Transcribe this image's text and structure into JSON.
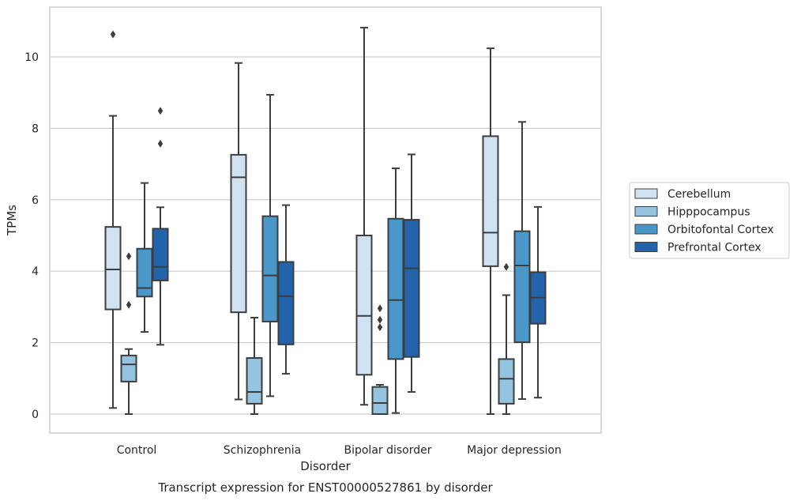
{
  "chart_data": {
    "type": "boxplot",
    "caption": "Transcript expression for ENST00000527861 by disorder",
    "xlabel": "Disorder",
    "ylabel": "TPMs",
    "ylim": [
      -0.5,
      11.4
    ],
    "yticks": [
      "0",
      "2",
      "4",
      "6",
      "8",
      "10"
    ],
    "ytick_values": [
      0,
      2,
      4,
      6,
      8,
      10
    ],
    "grid": "horizontal",
    "legend_position": "right",
    "categories": [
      "Control",
      "Schizophrenia",
      "Bipolar disorder",
      "Major depression"
    ],
    "series": [
      {
        "name": "Cerebellum",
        "color": "#d0e1f2",
        "boxes": [
          {
            "whislo": 0.17,
            "q1": 2.93,
            "med": 4.05,
            "q3": 5.24,
            "whishi": 8.35,
            "fliers": [
              10.63
            ]
          },
          {
            "whislo": 0.41,
            "q1": 2.85,
            "med": 6.63,
            "q3": 7.26,
            "whishi": 9.83,
            "fliers": []
          },
          {
            "whislo": 0.26,
            "q1": 1.1,
            "med": 2.75,
            "q3": 5.0,
            "whishi": 10.82,
            "fliers": []
          },
          {
            "whislo": 0.0,
            "q1": 4.14,
            "med": 5.08,
            "q3": 7.78,
            "whishi": 10.24,
            "fliers": []
          }
        ]
      },
      {
        "name": "Hipppocampus",
        "color": "#94c4df",
        "boxes": [
          {
            "whislo": 0.0,
            "q1": 0.91,
            "med": 1.39,
            "q3": 1.64,
            "whishi": 1.82,
            "fliers": [
              4.42,
              3.06
            ]
          },
          {
            "whislo": 0.0,
            "q1": 0.29,
            "med": 0.62,
            "q3": 1.57,
            "whishi": 2.7,
            "fliers": []
          },
          {
            "whislo": 0.0,
            "q1": 0.0,
            "med": 0.31,
            "q3": 0.76,
            "whishi": 0.82,
            "fliers": [
              2.96,
              2.64,
              2.43
            ]
          },
          {
            "whislo": 0.0,
            "q1": 0.29,
            "med": 0.99,
            "q3": 1.54,
            "whishi": 3.33,
            "fliers": [
              4.12
            ]
          }
        ]
      },
      {
        "name": "Orbitofontal Cortex",
        "color": "#4a98c9",
        "boxes": [
          {
            "whislo": 2.3,
            "q1": 3.29,
            "med": 3.53,
            "q3": 4.63,
            "whishi": 6.47,
            "fliers": []
          },
          {
            "whislo": 0.5,
            "q1": 2.59,
            "med": 3.88,
            "q3": 5.54,
            "whishi": 8.94,
            "fliers": []
          },
          {
            "whislo": 0.03,
            "q1": 1.54,
            "med": 3.19,
            "q3": 5.47,
            "whishi": 6.88,
            "fliers": []
          },
          {
            "whislo": 0.42,
            "q1": 2.01,
            "med": 4.16,
            "q3": 5.12,
            "whishi": 8.18,
            "fliers": []
          }
        ]
      },
      {
        "name": "Prefrontal Cortex",
        "color": "#2164ab",
        "boxes": [
          {
            "whislo": 1.94,
            "q1": 3.74,
            "med": 4.12,
            "q3": 5.19,
            "whishi": 5.79,
            "fliers": [
              8.49,
              7.57
            ]
          },
          {
            "whislo": 1.13,
            "q1": 1.95,
            "med": 3.3,
            "q3": 4.26,
            "whishi": 5.85,
            "fliers": []
          },
          {
            "whislo": 0.62,
            "q1": 1.6,
            "med": 4.08,
            "q3": 5.44,
            "whishi": 7.27,
            "fliers": []
          },
          {
            "whislo": 0.46,
            "q1": 2.53,
            "med": 3.26,
            "q3": 3.97,
            "whishi": 5.8,
            "fliers": []
          }
        ]
      }
    ]
  }
}
